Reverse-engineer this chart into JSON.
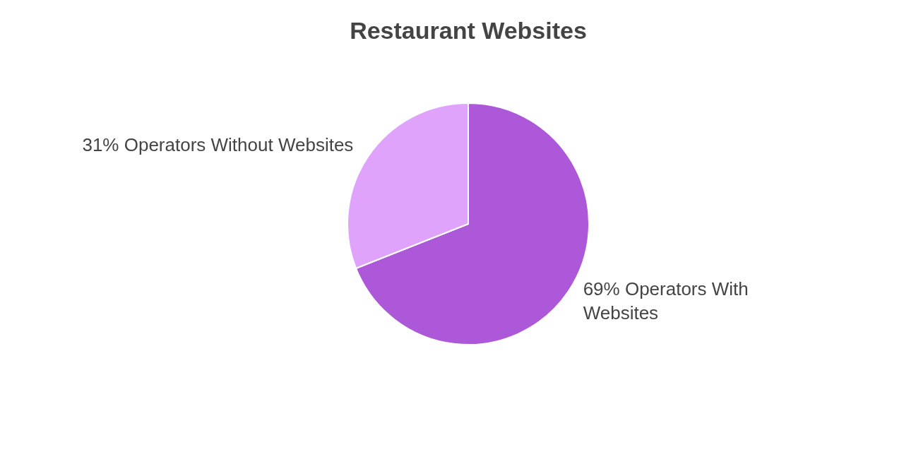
{
  "chart_data": {
    "type": "pie",
    "title": "Restaurant Websites",
    "categories": [
      "69% Operators With Websites",
      "31% Operators Without Websites"
    ],
    "values": [
      69,
      31
    ],
    "colors": [
      "#ad57d9",
      "#e0a3fc"
    ],
    "legend": false
  }
}
